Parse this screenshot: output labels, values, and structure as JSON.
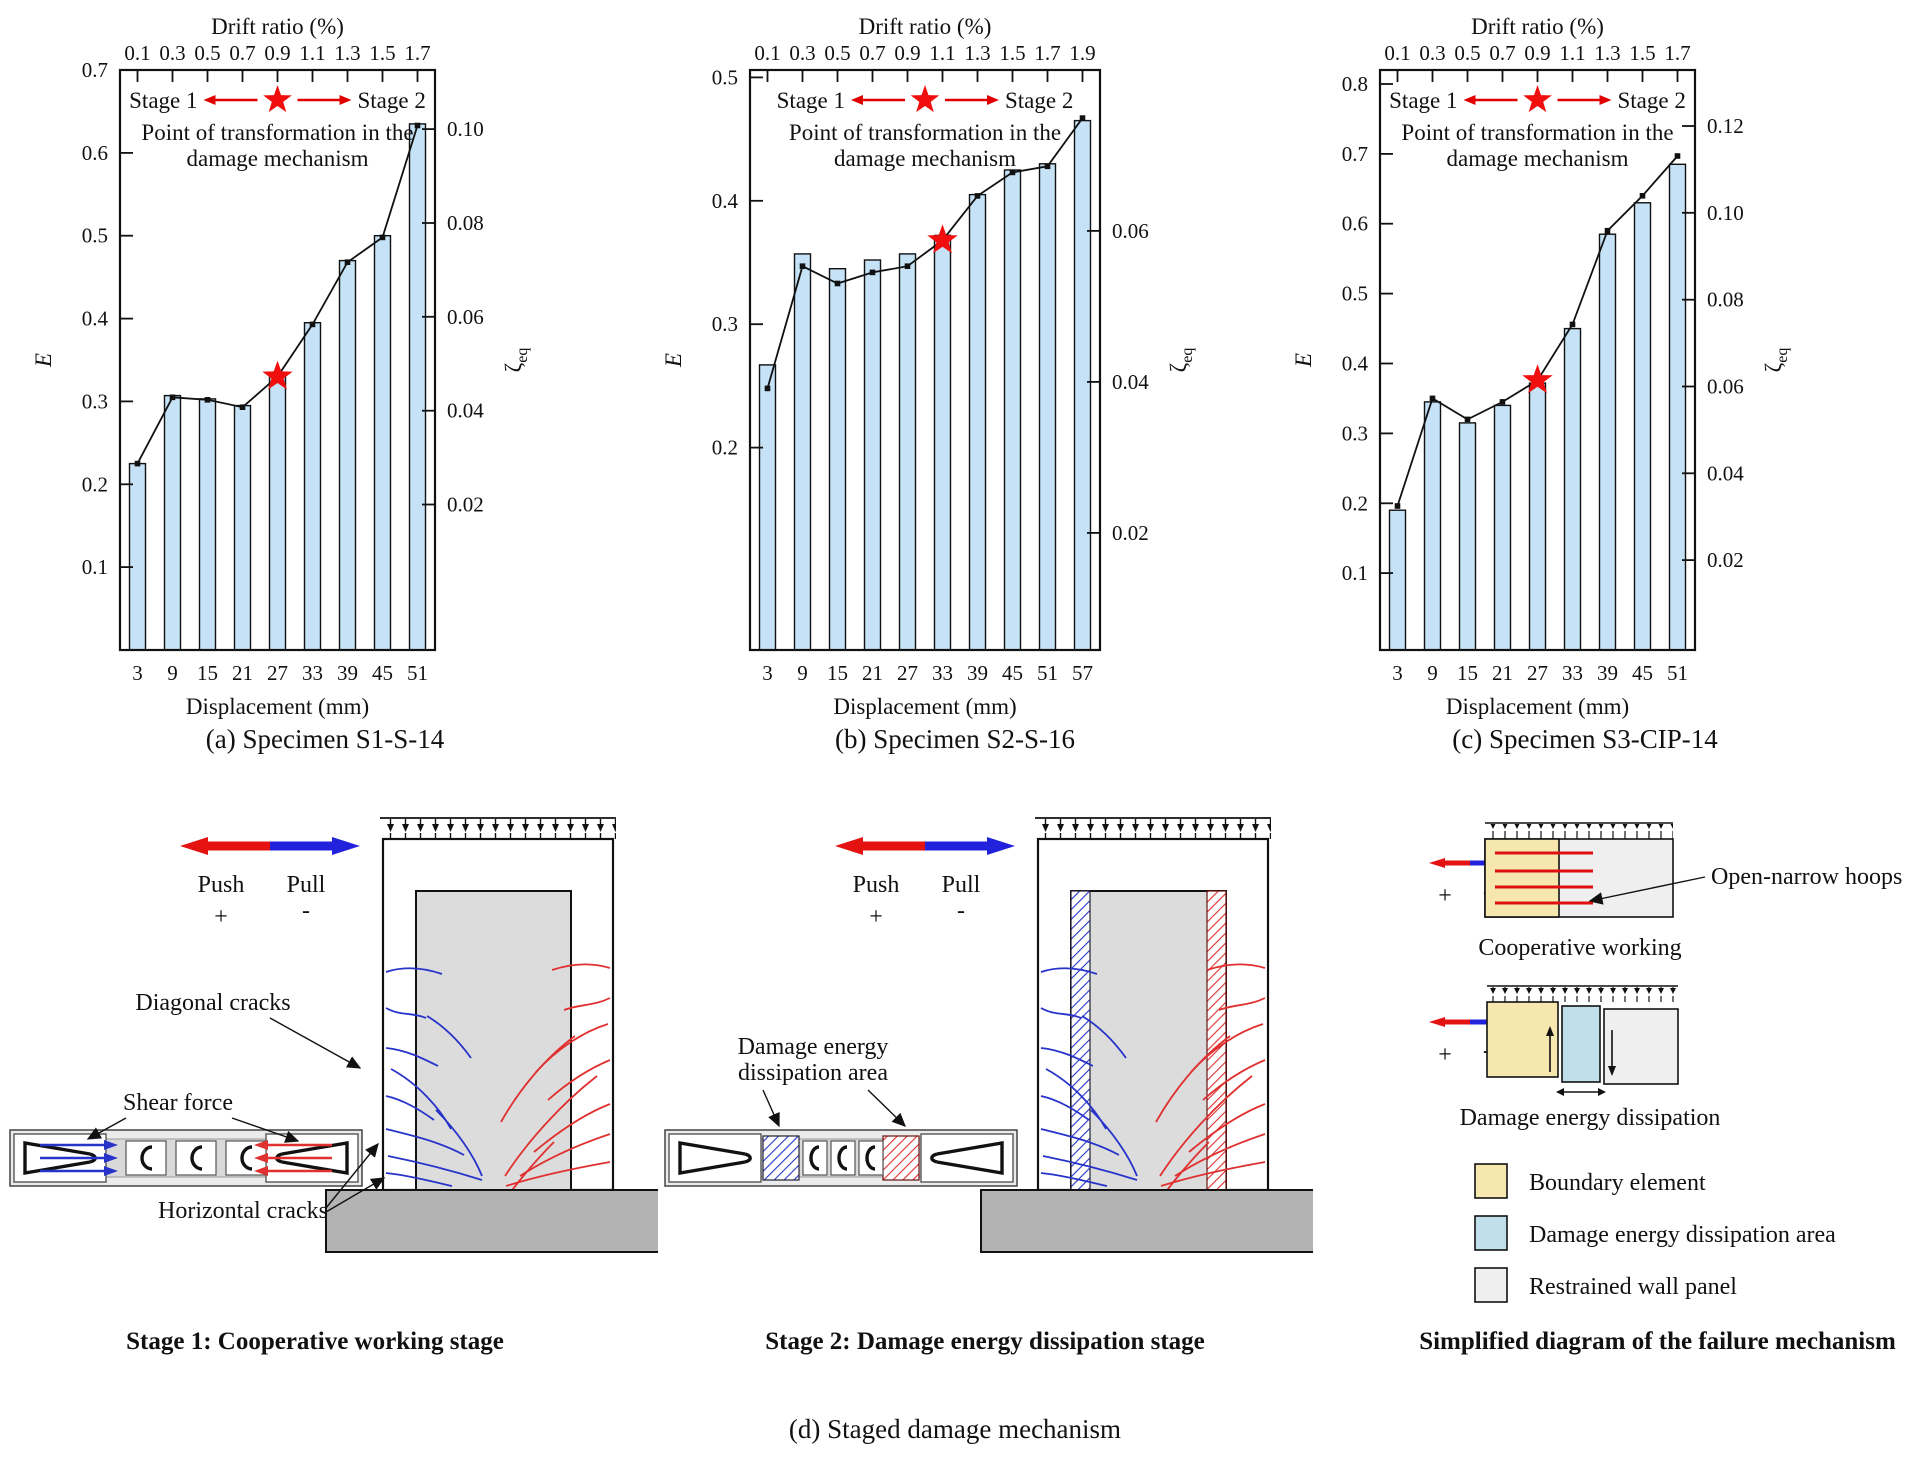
{
  "colors": {
    "bar": "#c5e2f6",
    "star": "#f10e0e",
    "stage_arrow": "#e00000",
    "crack_blue": "#2733c9",
    "crack_red": "#e03030",
    "push_red": "#e51212",
    "pull_blue": "#2222dd",
    "panel": "#dcdcdc",
    "footing": "#b3b3b3",
    "yellow": "#f5e7ae",
    "lblue": "#bfe0ea",
    "wallgray": "#efefef",
    "hoop_red": "#e01010"
  },
  "chart_data": [
    {
      "id": "a",
      "type": "bar",
      "caption": "(a) Specimen S1-S-14",
      "top_axis_label": "Drift ratio (%)",
      "top_ticks": [
        "0.1",
        "0.3",
        "0.5",
        "0.7",
        "0.9",
        "1.1",
        "1.3",
        "1.5",
        "1.7"
      ],
      "xlabel": "Displacement (mm)",
      "categories": [
        "3",
        "9",
        "15",
        "21",
        "27",
        "33",
        "39",
        "45",
        "51"
      ],
      "ylabel_left": "E",
      "ylabel_right_main": "ζ",
      "ylabel_right_sub": "eq",
      "left_axis": {
        "min": 0,
        "max": 0.7,
        "ticks": [
          0.1,
          0.2,
          0.3,
          0.4,
          0.5,
          0.6,
          0.7
        ],
        "decimals": 1
      },
      "right_axis": {
        "min": -0.011,
        "max": 0.1126,
        "ticks": [
          0.02,
          0.04,
          0.06,
          0.08,
          0.1
        ],
        "decimals": 2
      },
      "bars": [
        0.225,
        0.307,
        0.303,
        0.295,
        0.33,
        0.395,
        0.47,
        0.5,
        0.635
      ],
      "line": [
        0.225,
        0.305,
        0.302,
        0.293,
        0.33,
        0.393,
        0.468,
        0.498,
        0.633
      ],
      "star_index": 4,
      "annotations": {
        "stage1": "Stage 1",
        "stage2": "Stage 2",
        "note1": "Point of transformation in the",
        "note2": "damage mechanism"
      }
    },
    {
      "id": "b",
      "type": "bar",
      "caption": "(b) Specimen S2-S-16",
      "top_axis_label": "Drift ratio (%)",
      "top_ticks": [
        "0.1",
        "0.3",
        "0.5",
        "0.7",
        "0.9",
        "1.1",
        "1.3",
        "1.5",
        "1.7",
        "1.9"
      ],
      "xlabel": "Displacement (mm)",
      "categories": [
        "3",
        "9",
        "15",
        "21",
        "27",
        "33",
        "39",
        "45",
        "51",
        "57"
      ],
      "ylabel_left": "E",
      "ylabel_right_main": "ζ",
      "ylabel_right_sub": "eq",
      "left_axis": {
        "min": 0.036,
        "max": 0.506,
        "ticks": [
          0.2,
          0.3,
          0.4,
          0.5
        ],
        "decimals": 1
      },
      "right_axis": {
        "min": 0.0045,
        "max": 0.0813,
        "ticks": [
          0.02,
          0.04,
          0.06
        ],
        "decimals": 2
      },
      "bars": [
        0.267,
        0.357,
        0.345,
        0.352,
        0.357,
        0.372,
        0.405,
        0.425,
        0.43,
        0.465
      ],
      "line": [
        0.248,
        0.347,
        0.333,
        0.342,
        0.347,
        0.368,
        0.404,
        0.423,
        0.428,
        0.467
      ],
      "star_index": 5,
      "annotations": {
        "stage1": "Stage 1",
        "stage2": "Stage 2",
        "note1": "Point of transformation in the",
        "note2": "damage mechanism"
      }
    },
    {
      "id": "c",
      "type": "bar",
      "caption": "(c) Specimen S3-CIP-14",
      "top_axis_label": "Drift ratio (%)",
      "top_ticks": [
        "0.1",
        "0.3",
        "0.5",
        "0.7",
        "0.9",
        "1.1",
        "1.3",
        "1.5",
        "1.7"
      ],
      "xlabel": "Displacement (mm)",
      "categories": [
        "3",
        "9",
        "15",
        "21",
        "27",
        "33",
        "39",
        "45",
        "51"
      ],
      "ylabel_left": "E",
      "ylabel_right_main": "ζ",
      "ylabel_right_sub": "eq",
      "left_axis": {
        "min": -0.01,
        "max": 0.82,
        "ticks": [
          0.1,
          0.2,
          0.3,
          0.4,
          0.5,
          0.6,
          0.7,
          0.8
        ],
        "decimals": 1
      },
      "right_axis": {
        "min": -0.0007,
        "max": 0.1329,
        "ticks": [
          0.02,
          0.04,
          0.06,
          0.08,
          0.1,
          0.12
        ],
        "decimals": 2
      },
      "bars": [
        0.19,
        0.345,
        0.315,
        0.34,
        0.372,
        0.45,
        0.585,
        0.63,
        0.685
      ],
      "line": [
        0.196,
        0.35,
        0.32,
        0.345,
        0.376,
        0.456,
        0.59,
        0.64,
        0.697
      ],
      "star_index": 4,
      "annotations": {
        "stage1": "Stage 1",
        "stage2": "Stage 2",
        "note1": "Point of transformation in the",
        "note2": "damage mechanism"
      }
    }
  ],
  "diagram": {
    "push_pull": {
      "push": "Push",
      "plus": "+",
      "pull": "Pull",
      "minus": "-"
    },
    "stage1": {
      "diagonal_cracks": "Diagonal cracks",
      "shear_force": "Shear force",
      "horizontal_cracks": "Horizontal cracks",
      "caption": "Stage 1: Cooperative working stage"
    },
    "stage2": {
      "dissipation_line1": "Damage energy",
      "dissipation_line2": "dissipation area",
      "caption": "Stage 2: Damage energy dissipation stage"
    },
    "simplified": {
      "open_narrow_hoops": "Open-narrow hoops",
      "cooperative": "Cooperative working",
      "dissipation": "Damage energy dissipation",
      "caption": "Simplified diagram of the failure mechanism",
      "legend": [
        {
          "label": "Boundary element"
        },
        {
          "label": "Damage energy dissipation area"
        },
        {
          "label": "Restrained wall panel"
        }
      ]
    },
    "caption": "(d) Staged damage mechanism"
  }
}
